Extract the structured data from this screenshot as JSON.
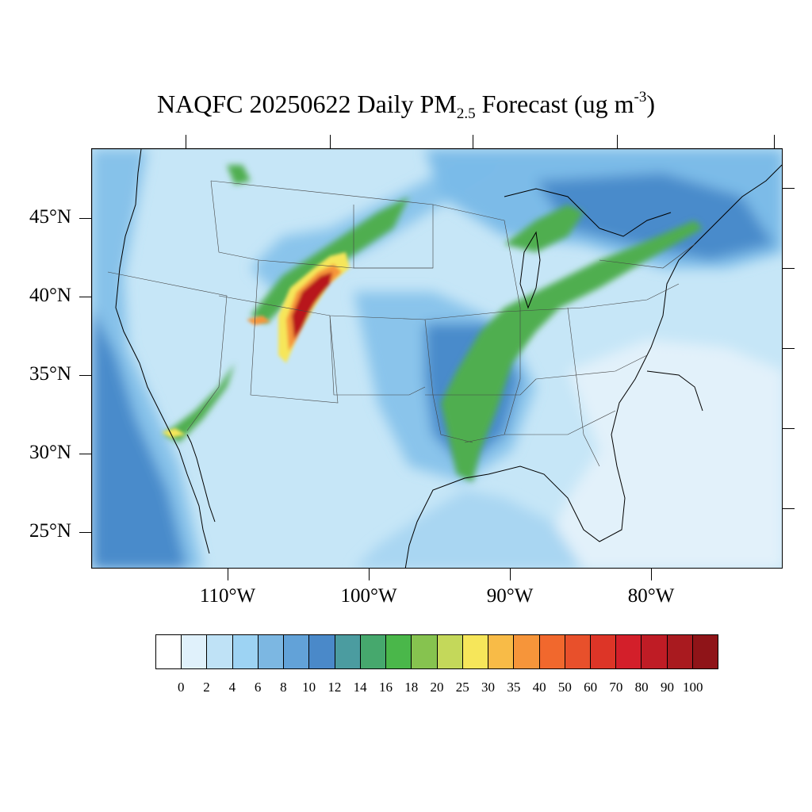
{
  "title": {
    "pre": "NAQFC 20250622 Daily PM",
    "sub": "2.5",
    "mid": " Forecast (ug m",
    "sup": "-3",
    "post": ")"
  },
  "map": {
    "lat_labels": [
      "45°N",
      "40°N",
      "35°N",
      "30°N",
      "25°N"
    ],
    "lon_labels": [
      "110°W",
      "100°W",
      "90°W",
      "80°W"
    ],
    "colors": {
      "background": "#c6e6f7",
      "ocean_pacific": "#6aa9dd",
      "atlantic_clean": "#e2f1fa",
      "moderate": "#7bbbe8",
      "enhanced": "#4a8bcb",
      "green": "#4fae4f",
      "smoke_red": "#b8161e"
    }
  },
  "colorbar": {
    "colors": [
      "#ffffff",
      "#e0f1fb",
      "#bfe2f6",
      "#9dd3f3",
      "#7cb7e2",
      "#62a2d8",
      "#4a89c9",
      "#4b9ca0",
      "#46a86d",
      "#4ab74a",
      "#86c34f",
      "#c4d85a",
      "#f6e65a",
      "#f8bb47",
      "#f6953a",
      "#f1682d",
      "#e8502b",
      "#dd3527",
      "#d31f2a",
      "#bf1c25",
      "#a91a1f",
      "#8f1418"
    ],
    "labels": [
      "0",
      "2",
      "4",
      "6",
      "8",
      "10",
      "12",
      "14",
      "16",
      "18",
      "20",
      "25",
      "30",
      "35",
      "40",
      "50",
      "60",
      "70",
      "80",
      "90",
      "100"
    ]
  }
}
